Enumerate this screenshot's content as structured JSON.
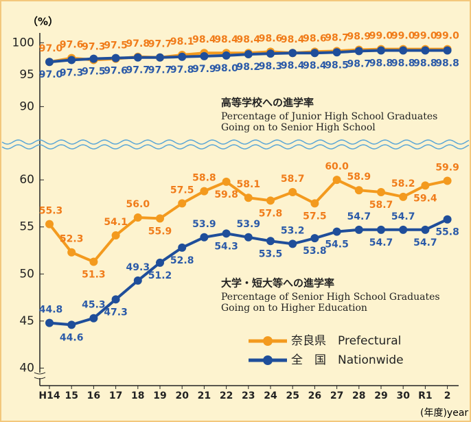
{
  "chart_data": [
    {
      "type": "line",
      "ylabel": "（%）",
      "annotation": [
        "高等学校への進学率",
        "Percentage of Junior High School Graduates",
        "Going on to Senior High School"
      ],
      "ylim": [
        88,
        101
      ],
      "yticks": [
        90,
        95,
        100
      ],
      "series": [
        {
          "color": "#f39a1e",
          "values": [
            97.0,
            97.6,
            97.3,
            97.5,
            97.8,
            97.7,
            98.1,
            98.4,
            98.4,
            98.4,
            98.6,
            98.4,
            98.6,
            98.7,
            98.9,
            99.0,
            99.0,
            99.0,
            99.0
          ],
          "value_labels": [
            "97.0",
            "97.6",
            "97.3",
            "97.5",
            "97.8",
            "97.7",
            "98.1",
            "98.4",
            "98.4",
            "98.4",
            "98.6",
            "98.4",
            "98.6",
            "98.7",
            "98.9",
            "99.0",
            "99.0",
            "99.0",
            "99.0"
          ]
        },
        {
          "color": "#1f4e9a",
          "values": [
            97.0,
            97.3,
            97.5,
            97.6,
            97.7,
            97.7,
            97.8,
            97.9,
            98.0,
            98.2,
            98.3,
            98.4,
            98.4,
            98.5,
            98.7,
            98.8,
            98.8,
            98.8,
            98.8
          ],
          "value_labels": [
            "97.0",
            "97.3",
            "97.5",
            "97.6",
            "97.7",
            "97.7",
            "97.8",
            "97.9",
            "98.0",
            "98.2",
            "98.3",
            "98.4",
            "98.4",
            "98.5",
            "98.7",
            "98.8",
            "98.8",
            "98.8",
            "98.8"
          ]
        }
      ]
    },
    {
      "type": "line",
      "xlabel": "(年度)year",
      "categories": [
        "H14",
        "15",
        "16",
        "17",
        "18",
        "19",
        "20",
        "21",
        "22",
        "23",
        "24",
        "25",
        "26",
        "27",
        "28",
        "29",
        "30",
        "R1",
        "2"
      ],
      "annotation": [
        "大学・短大等への進学率",
        "Percentage of Senior High School Graduates",
        "Going on to Higher Education"
      ],
      "ylim": [
        38.5,
        63
      ],
      "yticks": [
        40,
        45,
        50,
        55,
        60
      ],
      "series": [
        {
          "name": "奈良県　Prefectural",
          "color": "#f39a1e",
          "values": [
            55.3,
            52.3,
            51.3,
            54.1,
            56.0,
            55.9,
            57.5,
            58.8,
            59.8,
            58.1,
            57.8,
            58.7,
            57.5,
            60.0,
            58.9,
            58.7,
            58.2,
            59.4,
            59.9
          ],
          "value_labels": [
            "55.3",
            "52.3",
            "51.3",
            "54.1",
            "56.0",
            "55.9",
            "57.5",
            "58.8",
            "59.8",
            "58.1",
            "57.8",
            "58.7",
            "57.5",
            "60.0",
            "58.9",
            "58.7",
            "58.2",
            "59.4",
            "59.9"
          ]
        },
        {
          "name": "全　国　Nationwide",
          "color": "#1f4e9a",
          "values": [
            44.8,
            44.6,
            45.3,
            47.3,
            49.3,
            51.2,
            52.8,
            53.9,
            54.3,
            53.9,
            53.5,
            53.2,
            53.8,
            54.5,
            54.7,
            54.7,
            54.7,
            54.7,
            55.8
          ],
          "value_labels": [
            "44.8",
            "44.6",
            "45.3",
            "47.3",
            "49.3",
            "51.2",
            "52.8",
            "53.9",
            "54.3",
            "53.9",
            "53.5",
            "53.2",
            "53.8",
            "54.5",
            "54.7",
            "54.7",
            "54.7",
            "54.7",
            "55.8"
          ]
        }
      ]
    }
  ]
}
